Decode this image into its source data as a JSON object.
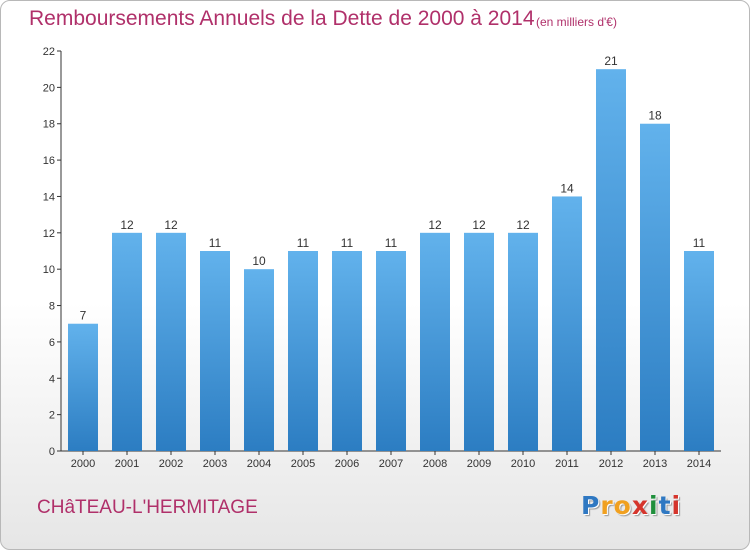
{
  "chart_data": {
    "type": "bar",
    "title": "Remboursements Annuels de la Dette de 2000 à 2014",
    "subtitle": "(en milliers d'€)",
    "categories": [
      "2000",
      "2001",
      "2002",
      "2003",
      "2004",
      "2005",
      "2006",
      "2007",
      "2008",
      "2009",
      "2010",
      "2011",
      "2012",
      "2013",
      "2014"
    ],
    "values": [
      7,
      12,
      12,
      11,
      10,
      11,
      11,
      11,
      12,
      12,
      12,
      14,
      21,
      18,
      11
    ],
    "ylim": [
      0,
      22
    ],
    "yticks": [
      0,
      2,
      4,
      6,
      8,
      10,
      12,
      14,
      16,
      18,
      20,
      22
    ],
    "grid": false,
    "legend": "none",
    "data_labels": true
  },
  "footer": {
    "commune": "CHâTEAU-L'HERMITAGE",
    "brand_letters": [
      "P",
      "r",
      "o",
      "x",
      "i",
      "t",
      "i"
    ]
  },
  "colors": {
    "title": "#b0306a",
    "bar_top": "#62b2ec",
    "bar_bottom": "#2c7dc2",
    "axis": "#333333",
    "brand": [
      "#2f78c2",
      "#f0a020",
      "#f0a020",
      "#d5352c",
      "#1f8f3c",
      "#2f78c2",
      "#d5352c"
    ]
  }
}
